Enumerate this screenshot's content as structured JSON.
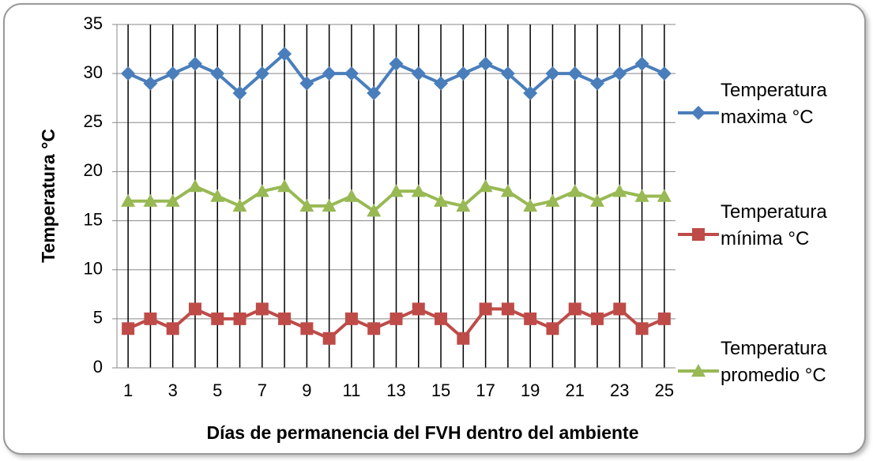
{
  "chart_data": {
    "type": "line",
    "xlabel": "Días de permanencia del FVH dentro del ambiente",
    "ylabel": "Temperatura °C",
    "categories": [
      1,
      null,
      3,
      null,
      5,
      null,
      7,
      null,
      9,
      null,
      11,
      null,
      13,
      null,
      15,
      null,
      17,
      null,
      19,
      null,
      21,
      null,
      23,
      null,
      25
    ],
    "ylim": [
      0,
      35
    ],
    "yticks": [
      0,
      5,
      10,
      15,
      20,
      25,
      30,
      35
    ],
    "grid": true,
    "series": [
      {
        "name": "Temperatura maxima °C",
        "color": "#4a7ebb",
        "marker": "diamond",
        "values": [
          30,
          29,
          30,
          31,
          30,
          28,
          30,
          32,
          29,
          30,
          30,
          28,
          31,
          30,
          29,
          30,
          31,
          30,
          28,
          30,
          30,
          29,
          30,
          31,
          30
        ]
      },
      {
        "name": "Temperatura mínima °C",
        "color": "#be4b48",
        "marker": "square",
        "values": [
          4,
          5,
          4,
          6,
          5,
          5,
          6,
          5,
          4,
          3,
          5,
          4,
          5,
          6,
          5,
          3,
          6,
          6,
          5,
          4,
          6,
          5,
          6,
          4,
          5
        ]
      },
      {
        "name": "Temperatura promedio °C",
        "color": "#98b954",
        "marker": "triangle",
        "values": [
          17,
          17,
          17,
          18.5,
          17.5,
          16.5,
          18,
          18.5,
          16.5,
          16.5,
          17.5,
          16,
          18,
          18,
          17,
          16.5,
          18.5,
          18,
          16.5,
          17,
          18,
          17,
          18,
          17.5,
          17.5
        ]
      }
    ]
  }
}
